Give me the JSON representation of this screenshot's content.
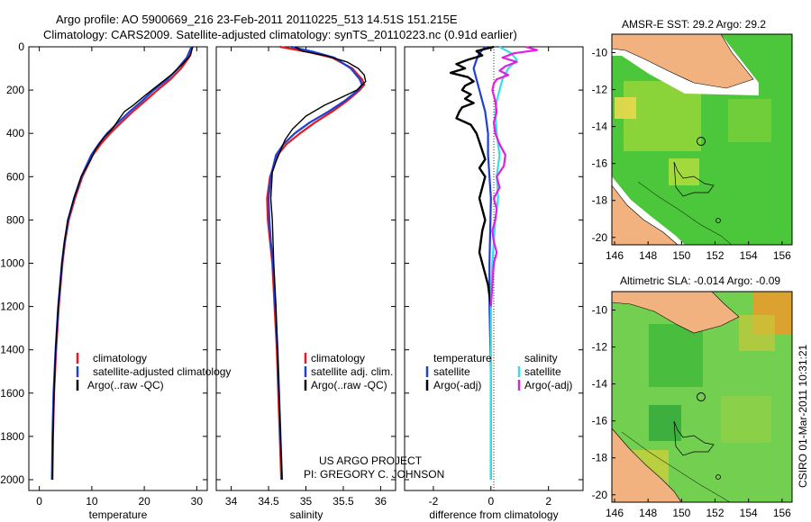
{
  "header": {
    "line1": "Argo profile: AO 5900669_216 23-Feb-2011 20110225_513 14.51S 151.215E",
    "line2": "Climatology: CARS2009. Satellite-adjusted climatology: synTS_20110223.nc (0.91d earlier)"
  },
  "project": {
    "line1": "US ARGO PROJECT",
    "line2": "PI: GREGORY C. JOHNSON"
  },
  "side_label": "CSIRO 01-Mar-2011 10:31:21",
  "colors": {
    "climatology": "#e41a1c",
    "satellite": "#1f3fd6",
    "argo": "#000000",
    "sal_satellite": "#33e0e8",
    "sal_argo": "#e020e0",
    "land": "#f2b27f",
    "ocean_base": "#3ec43e"
  },
  "legends": {
    "temperature": [
      "climatology",
      "satellite-adjusted climatology",
      "Argo(..raw -QC)"
    ],
    "salinity": [
      "climatology",
      "satellite adj. clim.",
      "Argo(..raw -QC)"
    ],
    "difference_temp_header": "temperature",
    "difference_sal_header": "salinity",
    "difference_temp": [
      "satellite",
      "Argo(-adj)"
    ],
    "difference_sal": [
      "satellite",
      "Argo(-adj)"
    ]
  },
  "maps": [
    {
      "title": "AMSR-E SST: 29.2 Argo: 29.2",
      "xticks": [
        "146",
        "148",
        "150",
        "152",
        "154",
        "156"
      ],
      "yticks": [
        "-10",
        "-12",
        "-14",
        "-16",
        "-18",
        "-20"
      ]
    },
    {
      "title": "Altimetric SLA: -0.014 Argo: -0.09",
      "xticks": [
        "146",
        "148",
        "150",
        "152",
        "154",
        "156"
      ],
      "yticks": [
        "-10",
        "-12",
        "-14",
        "-16",
        "-18",
        "-20"
      ]
    }
  ],
  "chart_data": [
    {
      "type": "line",
      "name": "temperature-profile",
      "xlabel": "temperature",
      "ylabel": "",
      "xlim": [
        -2,
        32
      ],
      "ylim": [
        2050,
        0
      ],
      "xticks": [
        "0",
        "10",
        "20",
        "30"
      ],
      "yticks": [
        "0",
        "200",
        "400",
        "600",
        "800",
        "1000",
        "1200",
        "1400",
        "1600",
        "1800",
        "2000"
      ],
      "series": [
        {
          "name": "climatology",
          "depth": [
            0,
            50,
            100,
            150,
            200,
            250,
            300,
            350,
            400,
            450,
            500,
            600,
            700,
            800,
            900,
            1000,
            1200,
            1400,
            1600,
            1800,
            2000
          ],
          "values": [
            29.2,
            28.5,
            27.0,
            25.0,
            22.5,
            20.2,
            17.8,
            15.6,
            13.5,
            11.7,
            10.2,
            8.2,
            6.8,
            5.6,
            4.9,
            4.4,
            3.7,
            3.2,
            2.8,
            2.6,
            2.5
          ]
        },
        {
          "name": "satellite",
          "depth": [
            0,
            50,
            100,
            150,
            200,
            250,
            300,
            350,
            400,
            450,
            500,
            600,
            700,
            800,
            900,
            1000,
            1200,
            1400,
            1600,
            1800,
            2000
          ],
          "values": [
            29.0,
            28.1,
            26.4,
            24.4,
            21.8,
            19.6,
            17.2,
            15.0,
            12.9,
            11.3,
            9.9,
            8.0,
            6.6,
            5.5,
            4.8,
            4.3,
            3.6,
            3.1,
            2.7,
            2.5,
            2.4
          ]
        },
        {
          "name": "Argo",
          "depth": [
            0,
            40,
            80,
            120,
            170,
            220,
            270,
            300,
            330,
            380,
            420,
            470,
            520,
            600,
            700,
            800,
            900,
            1000,
            1200,
            1400,
            1600,
            1800,
            2000
          ],
          "values": [
            29.2,
            28.8,
            27.3,
            25.6,
            23.0,
            20.4,
            17.9,
            16.2,
            15.3,
            13.9,
            12.3,
            10.8,
            9.8,
            8.0,
            6.6,
            5.4,
            4.8,
            4.3,
            3.6,
            3.1,
            2.8,
            2.6,
            2.5
          ]
        }
      ]
    },
    {
      "type": "line",
      "name": "salinity-profile",
      "xlabel": "salinity",
      "ylabel": "",
      "xlim": [
        33.8,
        36.2
      ],
      "ylim": [
        2050,
        0
      ],
      "xticks": [
        "34",
        "34.5",
        "35",
        "35.5",
        "36"
      ],
      "series": [
        {
          "name": "climatology",
          "depth": [
            0,
            25,
            50,
            100,
            150,
            175,
            200,
            250,
            300,
            350,
            400,
            450,
            500,
            600,
            700,
            800,
            900,
            1000,
            1200,
            1400,
            1600,
            1800,
            2000
          ],
          "values": [
            34.65,
            35.05,
            35.35,
            35.62,
            35.75,
            35.78,
            35.72,
            35.55,
            35.35,
            35.12,
            34.92,
            34.74,
            34.62,
            34.52,
            34.48,
            34.49,
            34.52,
            34.55,
            34.58,
            34.61,
            34.63,
            34.65,
            34.67
          ]
        },
        {
          "name": "satellite",
          "depth": [
            0,
            25,
            50,
            100,
            150,
            175,
            200,
            250,
            300,
            350,
            400,
            450,
            500,
            600,
            700,
            800,
            900,
            1000,
            1200,
            1400,
            1600,
            1800,
            2000
          ],
          "values": [
            34.8,
            35.12,
            35.38,
            35.6,
            35.72,
            35.75,
            35.7,
            35.52,
            35.3,
            35.05,
            34.85,
            34.7,
            34.6,
            34.53,
            34.5,
            34.51,
            34.53,
            34.56,
            34.59,
            34.62,
            34.64,
            34.66,
            34.68
          ]
        },
        {
          "name": "Argo",
          "depth": [
            0,
            20,
            40,
            70,
            100,
            130,
            160,
            200,
            230,
            270,
            320,
            380,
            430,
            480,
            530,
            580,
            640,
            700,
            800,
            900,
            1000,
            1200,
            1400,
            1600,
            1800,
            2000
          ],
          "values": [
            34.85,
            34.95,
            35.25,
            35.55,
            35.7,
            35.78,
            35.8,
            35.68,
            35.5,
            35.25,
            35.0,
            34.82,
            34.72,
            34.66,
            34.6,
            34.55,
            34.54,
            34.53,
            34.55,
            34.56,
            34.57,
            34.6,
            34.62,
            34.64,
            34.66,
            34.68
          ]
        }
      ]
    },
    {
      "type": "line",
      "name": "difference-profile",
      "xlabel": "difference from climatology",
      "ylabel": "",
      "xlim": [
        -3,
        3.2
      ],
      "ylim": [
        2050,
        0
      ],
      "xticks": [
        "-2",
        "0",
        "2"
      ],
      "series": [
        {
          "name": "temperature satellite",
          "depth": [
            0,
            30,
            60,
            100,
            150,
            200,
            250,
            300,
            400,
            500,
            700,
            1000,
            1200,
            1500,
            2000
          ],
          "values": [
            -0.2,
            -0.4,
            -0.5,
            -0.6,
            -0.5,
            -0.4,
            -0.3,
            -0.2,
            -0.1,
            -0.1,
            0.0,
            -0.05,
            -0.05,
            0.0,
            0.0
          ]
        },
        {
          "name": "temperature Argo(-adj)",
          "depth": [
            0,
            20,
            40,
            60,
            80,
            100,
            120,
            140,
            160,
            180,
            200,
            220,
            240,
            260,
            280,
            300,
            330,
            360,
            400,
            440,
            480,
            520,
            560,
            600,
            650,
            700,
            750,
            800,
            850,
            900,
            950,
            1000,
            1050,
            1100,
            1150,
            1200
          ],
          "values": [
            0.1,
            -0.5,
            -0.3,
            -0.8,
            -1.2,
            -0.9,
            -1.4,
            -0.8,
            -0.6,
            -0.9,
            -1.0,
            -0.7,
            -0.9,
            -0.6,
            -1.0,
            -1.1,
            -1.2,
            -0.7,
            -0.5,
            -0.4,
            -0.3,
            -0.2,
            -0.4,
            -0.2,
            -0.3,
            -0.4,
            -0.3,
            -0.2,
            -0.3,
            -0.35,
            -0.4,
            -0.3,
            -0.2,
            -0.1,
            -0.05,
            0.0
          ]
        },
        {
          "name": "salinity satellite",
          "depth": [
            0,
            30,
            60,
            100,
            150,
            200,
            250,
            300,
            400,
            500,
            600,
            700,
            800,
            900,
            1000,
            1200,
            1500,
            2000
          ],
          "values": [
            0.3,
            0.7,
            0.9,
            0.6,
            0.4,
            0.3,
            0.2,
            0.15,
            0.2,
            0.3,
            0.2,
            0.25,
            0.15,
            0.1,
            0.05,
            0.0,
            0.0,
            0.0
          ]
        },
        {
          "name": "salinity Argo(-adj)",
          "depth": [
            0,
            15,
            30,
            50,
            70,
            90,
            110,
            130,
            150,
            170,
            200,
            250,
            300,
            350,
            400,
            450,
            500,
            550,
            600,
            650,
            700,
            750,
            800,
            850,
            900,
            950,
            1000,
            1100,
            1200
          ],
          "values": [
            1.2,
            1.6,
            0.8,
            0.4,
            0.9,
            0.5,
            0.3,
            0.6,
            0.2,
            0.1,
            0.05,
            0.15,
            0.2,
            0.1,
            0.15,
            0.3,
            0.5,
            0.45,
            0.2,
            0.3,
            0.1,
            0.2,
            0.15,
            0.05,
            0.1,
            0.2,
            0.1,
            0.05,
            0.0
          ]
        }
      ]
    }
  ]
}
